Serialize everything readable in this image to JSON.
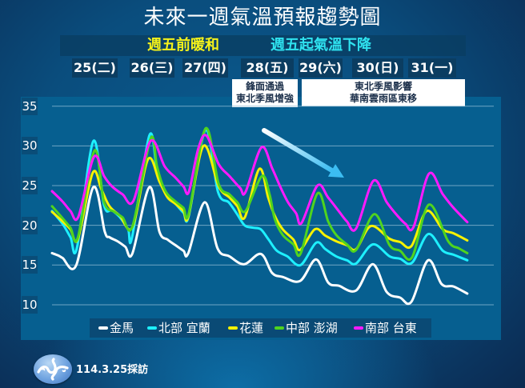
{
  "title": "未來一週氣溫預報趨勢圖",
  "subtitle": {
    "left": "週五前暖和",
    "right": "週五起氣溫下降"
  },
  "colors": {
    "subtitle_left": "#f5f21a",
    "subtitle_right": "#2fe3f0",
    "panel": "#065f90"
  },
  "days": [
    "25(二)",
    "26(三)",
    "27(四)",
    "28(五)",
    "29(六)",
    "30(日)",
    "31(一)"
  ],
  "notes": [
    {
      "lines": [
        "鋒面通過",
        "東北季風增強"
      ]
    },
    {
      "lines": [
        "東北季風影響",
        "華南雲雨區東移"
      ]
    }
  ],
  "footer": {
    "date_text": "114.3.25採訪"
  },
  "chart_data": {
    "type": "line",
    "title": "未來一週氣溫預報趨勢圖",
    "subtitle": "週五前暖和　週五起氣溫下降",
    "xlabel": "",
    "ylabel": "",
    "ylim": [
      10,
      35
    ],
    "yticks": [
      35,
      30,
      25,
      20,
      15,
      10
    ],
    "grid": true,
    "legend_position": "bottom",
    "categories": [
      "25(二)",
      "26(三)",
      "27(四)",
      "28(五)",
      "29(六)",
      "30(日)",
      "31(一)"
    ],
    "x_axis": "approx. hours from left edge of plot (daily peaks ~every 24h)",
    "annotations": [
      {
        "text": "鋒面通過 / 東北季風增強",
        "at": "28(五)"
      },
      {
        "text": "東北季風影響 / 華南雲雨區東移",
        "at": "29(六)-31(一)"
      },
      {
        "type": "arrow",
        "meaning": "downward temperature trend"
      }
    ],
    "series": [
      {
        "name": "金馬",
        "color": "#ffffff",
        "points": [
          [
            0,
            16.5
          ],
          [
            2.7,
            16.2
          ],
          [
            4.5,
            15.9
          ],
          [
            10.4,
            15.0
          ],
          [
            17.7,
            24.8
          ],
          [
            22.6,
            19.2
          ],
          [
            24.6,
            18.5
          ],
          [
            28.0,
            18.0
          ],
          [
            31.4,
            17.3
          ],
          [
            34.5,
            16.5
          ],
          [
            41.7,
            24.8
          ],
          [
            46.0,
            19.2
          ],
          [
            49.5,
            18.2
          ],
          [
            52.9,
            17.5
          ],
          [
            56.3,
            16.8
          ],
          [
            58.4,
            16.5
          ],
          [
            65.4,
            22.9
          ],
          [
            70.9,
            17.1
          ],
          [
            76.0,
            16.1
          ],
          [
            82.3,
            15.1
          ],
          [
            89.5,
            16.4
          ],
          [
            94.3,
            14.0
          ],
          [
            98.8,
            13.5
          ],
          [
            106.3,
            13.0
          ],
          [
            113.1,
            15.7
          ],
          [
            118.3,
            12.8
          ],
          [
            122.8,
            12.4
          ],
          [
            130.3,
            11.8
          ],
          [
            137.4,
            15.1
          ],
          [
            143.4,
            11.6
          ],
          [
            149.1,
            10.9
          ],
          [
            154.0,
            10.4
          ],
          [
            161.1,
            15.6
          ],
          [
            166.9,
            12.6
          ],
          [
            172.0,
            12.3
          ],
          [
            177.9,
            11.4
          ]
        ]
      },
      {
        "name": "北部 宜蘭",
        "color": "#1ef0ff",
        "points": [
          [
            0,
            21.8
          ],
          [
            4.5,
            20.2
          ],
          [
            7.9,
            18.5
          ],
          [
            10.7,
            17.2
          ],
          [
            17.7,
            30.6
          ],
          [
            22.3,
            22.5
          ],
          [
            25.7,
            21.9
          ],
          [
            29.1,
            21.0
          ],
          [
            32.6,
            19.5
          ],
          [
            34.3,
            18.5
          ],
          [
            41.7,
            31.3
          ],
          [
            44.9,
            27.0
          ],
          [
            47.2,
            25.0
          ],
          [
            49.5,
            23.6
          ],
          [
            52.9,
            22.7
          ],
          [
            56.3,
            21.6
          ],
          [
            58.6,
            21.2
          ],
          [
            65.8,
            32.0
          ],
          [
            71.1,
            24.2
          ],
          [
            75.7,
            22.9
          ],
          [
            79.1,
            21.5
          ],
          [
            82.5,
            20.0
          ],
          [
            86.0,
            19.7
          ],
          [
            89.4,
            19.5
          ],
          [
            92.8,
            18.2
          ],
          [
            96.3,
            16.8
          ],
          [
            100.8,
            16.1
          ],
          [
            106.5,
            15.0
          ],
          [
            113.1,
            17.8
          ],
          [
            117.1,
            17.0
          ],
          [
            121.7,
            16.1
          ],
          [
            126.3,
            15.6
          ],
          [
            130.3,
            15.2
          ],
          [
            137.4,
            17.6
          ],
          [
            144.6,
            16.1
          ],
          [
            149.1,
            15.8
          ],
          [
            154.3,
            15.3
          ],
          [
            161.1,
            18.9
          ],
          [
            167.4,
            16.8
          ],
          [
            172.0,
            16.3
          ],
          [
            177.9,
            15.6
          ]
        ]
      },
      {
        "name": "花蓮",
        "color": "#f7f200",
        "points": [
          [
            0,
            21.7
          ],
          [
            4.5,
            20.5
          ],
          [
            7.9,
            19.5
          ],
          [
            11.1,
            18.3
          ],
          [
            17.4,
            26.6
          ],
          [
            21.2,
            24.5
          ],
          [
            24.6,
            22.4
          ],
          [
            29.1,
            21.2
          ],
          [
            34.5,
            19.8
          ],
          [
            41.1,
            28.3
          ],
          [
            46.0,
            25.5
          ],
          [
            49.5,
            23.5
          ],
          [
            52.9,
            22.7
          ],
          [
            56.3,
            21.8
          ],
          [
            58.4,
            21.1
          ],
          [
            64.9,
            30.0
          ],
          [
            71.4,
            24.9
          ],
          [
            76.0,
            23.5
          ],
          [
            79.4,
            22.4
          ],
          [
            82.6,
            21.0
          ],
          [
            88.8,
            27.1
          ],
          [
            92.6,
            23.5
          ],
          [
            95.4,
            21.2
          ],
          [
            98.8,
            19.5
          ],
          [
            103.4,
            18.2
          ],
          [
            106.3,
            16.9
          ],
          [
            112.6,
            19.5
          ],
          [
            117.1,
            18.7
          ],
          [
            121.7,
            18.0
          ],
          [
            126.3,
            17.5
          ],
          [
            130.3,
            17.0
          ],
          [
            136.6,
            19.9
          ],
          [
            144.6,
            18.3
          ],
          [
            149.1,
            17.9
          ],
          [
            154.0,
            17.4
          ],
          [
            160.5,
            21.8
          ],
          [
            167.4,
            19.5
          ],
          [
            172.0,
            19.0
          ],
          [
            177.9,
            18.1
          ]
        ]
      },
      {
        "name": "中部 澎湖",
        "color": "#4fd41e",
        "points": [
          [
            0,
            22.4
          ],
          [
            4.5,
            20.9
          ],
          [
            7.9,
            19.7
          ],
          [
            11.1,
            18.5
          ],
          [
            18.2,
            29.4
          ],
          [
            22.3,
            22.9
          ],
          [
            26.7,
            21.7
          ],
          [
            30.2,
            21.0
          ],
          [
            34.5,
            19.9
          ],
          [
            42.2,
            30.9
          ],
          [
            44.9,
            27.5
          ],
          [
            47.2,
            25.2
          ],
          [
            49.5,
            23.9
          ],
          [
            52.9,
            23.0
          ],
          [
            56.3,
            22.2
          ],
          [
            58.6,
            21.5
          ],
          [
            65.8,
            32.2
          ],
          [
            71.4,
            25.2
          ],
          [
            76.0,
            23.9
          ],
          [
            79.4,
            22.9
          ],
          [
            82.9,
            21.8
          ],
          [
            89.9,
            26.2
          ],
          [
            93.2,
            23.9
          ],
          [
            95.4,
            20.8
          ],
          [
            98.8,
            18.8
          ],
          [
            103.4,
            17.6
          ],
          [
            106.6,
            16.5
          ],
          [
            113.7,
            24.0
          ],
          [
            118.3,
            20.5
          ],
          [
            121.7,
            18.8
          ],
          [
            126.3,
            17.6
          ],
          [
            130.3,
            16.9
          ],
          [
            138.1,
            21.4
          ],
          [
            144.6,
            17.5
          ],
          [
            149.1,
            16.8
          ],
          [
            154.3,
            16.0
          ],
          [
            161.5,
            22.6
          ],
          [
            169.7,
            18.0
          ],
          [
            174.3,
            17.1
          ],
          [
            177.9,
            16.5
          ]
        ]
      },
      {
        "name": "南部 台東",
        "color": "#ff1aff",
        "points": [
          [
            0,
            24.3
          ],
          [
            4.5,
            23.0
          ],
          [
            7.9,
            21.8
          ],
          [
            11.3,
            21.1
          ],
          [
            17.9,
            28.6
          ],
          [
            22.3,
            26.2
          ],
          [
            25.7,
            24.9
          ],
          [
            30.2,
            23.9
          ],
          [
            34.9,
            23.1
          ],
          [
            42.2,
            30.6
          ],
          [
            48.3,
            27.4
          ],
          [
            52.9,
            26.0
          ],
          [
            56.3,
            24.9
          ],
          [
            58.6,
            24.2
          ],
          [
            62.6,
            29.6
          ],
          [
            66.1,
            31.3
          ],
          [
            71.4,
            27.7
          ],
          [
            76.0,
            26.2
          ],
          [
            80.6,
            24.7
          ],
          [
            82.9,
            24.2
          ],
          [
            89.7,
            29.8
          ],
          [
            94.3,
            27.2
          ],
          [
            97.7,
            24.9
          ],
          [
            101.1,
            22.9
          ],
          [
            104.6,
            21.5
          ],
          [
            106.9,
            20.3
          ],
          [
            113.7,
            25.0
          ],
          [
            118.3,
            23.5
          ],
          [
            122.8,
            21.8
          ],
          [
            126.3,
            20.5
          ],
          [
            130.3,
            19.6
          ],
          [
            137.7,
            25.6
          ],
          [
            143.4,
            22.9
          ],
          [
            148.0,
            21.2
          ],
          [
            151.4,
            20.2
          ],
          [
            154.9,
            19.8
          ],
          [
            161.5,
            26.5
          ],
          [
            167.4,
            23.9
          ],
          [
            172.0,
            22.2
          ],
          [
            177.9,
            20.4
          ]
        ]
      }
    ]
  }
}
